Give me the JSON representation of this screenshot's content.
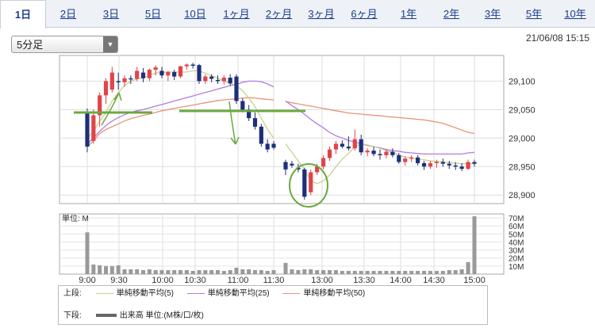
{
  "tabs": [
    "1日",
    "2日",
    "3日",
    "5日",
    "10日",
    "1ヶ月",
    "2ヶ月",
    "3ヶ月",
    "6ヶ月",
    "1年",
    "2年",
    "3年",
    "5年",
    "10年"
  ],
  "active_tab": 0,
  "interval_select": {
    "value": "5分足"
  },
  "timestamp": "21/06/08 15:15",
  "legend": {
    "upper_label": "上段:",
    "lower_label": "下段:",
    "upper_items": [
      {
        "label": "単純移動平均(5)",
        "color": "#c8d28a"
      },
      {
        "label": "単純移動平均(25)",
        "color": "#b37be0"
      },
      {
        "label": "単純移動平均(50)",
        "color": "#e8947a"
      }
    ],
    "lower_items": [
      {
        "label": "出来高 単位:(M株/口/枚)",
        "color": "#666666"
      }
    ]
  },
  "colors": {
    "up": "#e0444a",
    "down": "#1d2f7a",
    "annotation": "#6aa840",
    "volume": "#999999"
  },
  "chart_data": [
    {
      "type": "candlestick",
      "y_ticks": [
        "29,100",
        "29,050",
        "29,000",
        "28,950",
        "28,900"
      ],
      "ylim": [
        28885,
        29145
      ],
      "x_ticks": [
        "9:00",
        "9:30",
        "10:00",
        "10:30",
        "11:00",
        "11:30",
        "13:00",
        "13:30",
        "14:00",
        "14:30",
        "15:00"
      ],
      "morning_times": [
        "9:00",
        "9:05",
        "9:10",
        "9:15",
        "9:20",
        "9:25",
        "9:30",
        "9:35",
        "9:40",
        "9:45",
        "9:50",
        "9:55",
        "10:00",
        "10:05",
        "10:10",
        "10:15",
        "10:20",
        "10:25",
        "10:30",
        "10:35",
        "10:40",
        "10:45",
        "10:50",
        "10:55",
        "11:00",
        "11:05",
        "11:10",
        "11:15",
        "11:20",
        "11:25",
        "11:30"
      ],
      "afternoon_times": [
        "12:30",
        "12:35",
        "12:40",
        "12:45",
        "12:50",
        "12:55",
        "13:00",
        "13:05",
        "13:10",
        "13:15",
        "13:20",
        "13:25",
        "13:30",
        "13:35",
        "13:40",
        "13:45",
        "13:50",
        "13:55",
        "14:00",
        "14:05",
        "14:10",
        "14:15",
        "14:20",
        "14:25",
        "14:30",
        "14:35",
        "14:40",
        "14:45",
        "14:50",
        "14:55",
        "15:00"
      ],
      "morning_ohlc": [
        [
          29045,
          29052,
          28975,
          28985
        ],
        [
          28995,
          29050,
          28990,
          29040
        ],
        [
          29040,
          29080,
          29020,
          29075
        ],
        [
          29075,
          29105,
          29060,
          29100
        ],
        [
          29085,
          29125,
          29080,
          29115
        ],
        [
          29100,
          29115,
          29085,
          29098
        ],
        [
          29098,
          29110,
          29090,
          29105
        ],
        [
          29105,
          29110,
          29095,
          29104
        ],
        [
          29104,
          29125,
          29100,
          29118
        ],
        [
          29115,
          29123,
          29098,
          29105
        ],
        [
          29105,
          29122,
          29100,
          29120
        ],
        [
          29120,
          29128,
          29110,
          29124
        ],
        [
          29118,
          29125,
          29105,
          29110
        ],
        [
          29110,
          29118,
          29100,
          29116
        ],
        [
          29116,
          29120,
          29102,
          29108
        ],
        [
          29108,
          29127,
          29105,
          29126
        ],
        [
          29126,
          29131,
          29120,
          29129
        ],
        [
          29129,
          29132,
          29122,
          29128
        ],
        [
          29128,
          29130,
          29095,
          29100
        ],
        [
          29100,
          29112,
          29095,
          29108
        ],
        [
          29108,
          29112,
          29098,
          29104
        ],
        [
          29102,
          29110,
          29095,
          29100
        ],
        [
          29100,
          29110,
          29094,
          29106
        ],
        [
          29106,
          29112,
          29092,
          29096
        ],
        [
          29108,
          29112,
          29060,
          29065
        ],
        [
          29065,
          29070,
          29045,
          29050
        ],
        [
          29050,
          29058,
          29030,
          29035
        ],
        [
          29035,
          29045,
          29015,
          29020
        ],
        [
          29020,
          29025,
          28985,
          28990
        ],
        [
          28990,
          28998,
          28975,
          28980
        ],
        [
          28990,
          28995,
          28980,
          28983
        ]
      ],
      "afternoon_ohlc": [
        [
          28958,
          28962,
          28935,
          28945
        ],
        [
          28955,
          28960,
          28948,
          28952
        ],
        [
          28948,
          28955,
          28940,
          28945
        ],
        [
          28945,
          28948,
          28892,
          28897
        ],
        [
          28905,
          28945,
          28900,
          28940
        ],
        [
          28940,
          28955,
          28935,
          28950
        ],
        [
          28950,
          28970,
          28945,
          28965
        ],
        [
          28965,
          28985,
          28960,
          28980
        ],
        [
          28980,
          28995,
          28972,
          28990
        ],
        [
          28990,
          28996,
          28982,
          28985
        ],
        [
          28985,
          29003,
          28978,
          28982
        ],
        [
          28982,
          29015,
          28978,
          28998
        ],
        [
          28998,
          29006,
          28970,
          28975
        ],
        [
          28975,
          28982,
          28968,
          28978
        ],
        [
          28978,
          28985,
          28968,
          28972
        ],
        [
          28972,
          28980,
          28962,
          28970
        ],
        [
          28970,
          28980,
          28964,
          28976
        ],
        [
          28976,
          28982,
          28966,
          28970
        ],
        [
          28970,
          28974,
          28955,
          28958
        ],
        [
          28958,
          28968,
          28952,
          28964
        ],
        [
          28964,
          28970,
          28958,
          28966
        ],
        [
          28966,
          28970,
          28952,
          28956
        ],
        [
          28956,
          28960,
          28944,
          28950
        ],
        [
          28950,
          28960,
          28946,
          28956
        ],
        [
          28956,
          28962,
          28948,
          28958
        ],
        [
          28958,
          28964,
          28950,
          28955
        ],
        [
          28955,
          28960,
          28946,
          28952
        ],
        [
          28952,
          28958,
          28944,
          28950
        ],
        [
          28950,
          28956,
          28942,
          28946
        ],
        [
          28946,
          28962,
          28944,
          28958
        ],
        [
          28958,
          28962,
          28950,
          28955
        ]
      ],
      "sma5": {
        "morning": [
          29000,
          29012,
          29030,
          29045,
          29065,
          29080,
          29092,
          29100,
          29104,
          29106,
          29110,
          29114,
          29115,
          29116,
          29116,
          29116,
          29116,
          29118,
          29118,
          29114,
          29110,
          29105,
          29100,
          29096,
          29092,
          29083,
          29070,
          29055,
          29035,
          29015,
          29000
        ],
        "afternoon": [
          28990,
          28975,
          28960,
          28945,
          28925,
          28920,
          28925,
          28935,
          28950,
          28963,
          28973,
          28985,
          28990,
          28988,
          28985,
          28982,
          28978,
          28975,
          28970,
          28967,
          28965,
          28963,
          28962,
          28960,
          28959,
          28958,
          28957,
          28956,
          28955,
          28955,
          28955
        ]
      },
      "sma25": {
        "morning": [
          28990,
          29000,
          29012,
          29022,
          29030,
          29036,
          29041,
          29045,
          29048,
          29050,
          29053,
          29056,
          29059,
          29062,
          29065,
          29068,
          29071,
          29074,
          29077,
          29080,
          29083,
          29086,
          29089,
          29092,
          29094,
          29098,
          29100,
          29100,
          29099,
          29095,
          29090
        ],
        "afternoon": [
          29065,
          29057,
          29050,
          29042,
          29033,
          29025,
          29018,
          29010,
          29004,
          29000,
          28996,
          28993,
          28990,
          28987,
          28985,
          28983,
          28980,
          28978,
          28977,
          28975,
          28974,
          28973,
          28972,
          28972,
          28972,
          28972,
          28972,
          28972,
          28972,
          28974,
          28975
        ]
      },
      "sma50": {
        "morning": [
          28985,
          28995,
          29008,
          29015,
          29020,
          29025,
          29030,
          29034,
          29037,
          29040,
          29042,
          29045,
          29048,
          29050,
          29052,
          29054,
          29056,
          29058,
          29060,
          29062,
          29064,
          29066,
          29067,
          29068,
          29069,
          29070,
          29071,
          29070,
          29069,
          29068,
          29067
        ],
        "afternoon": [
          29064,
          29062,
          29060,
          29058,
          29056,
          29054,
          29052,
          29050,
          29048,
          29046,
          29044,
          29043,
          29042,
          29041,
          29040,
          29039,
          29038,
          29037,
          29036,
          29035,
          29034,
          29033,
          29032,
          29030,
          29028,
          29026,
          29022,
          29018,
          29014,
          29010,
          29008
        ]
      }
    },
    {
      "type": "bar",
      "unit_label": "単位: M",
      "y_ticks": [
        "70M",
        "60M",
        "50M",
        "40M",
        "30M",
        "20M",
        "10M"
      ],
      "ylim": [
        0,
        75
      ],
      "morning_volume": [
        52,
        12,
        11,
        10,
        10,
        11,
        6,
        6,
        6,
        5,
        6,
        5,
        5,
        5,
        5,
        5,
        5,
        4,
        5,
        5,
        5,
        5,
        4,
        5,
        8,
        6,
        6,
        5,
        5,
        4,
        5
      ],
      "afternoon_volume": [
        14,
        6,
        5,
        6,
        6,
        5,
        5,
        5,
        5,
        4,
        4,
        4,
        4,
        4,
        4,
        4,
        4,
        4,
        4,
        4,
        4,
        4,
        4,
        4,
        4,
        4,
        5,
        5,
        6,
        15,
        72
      ]
    }
  ]
}
